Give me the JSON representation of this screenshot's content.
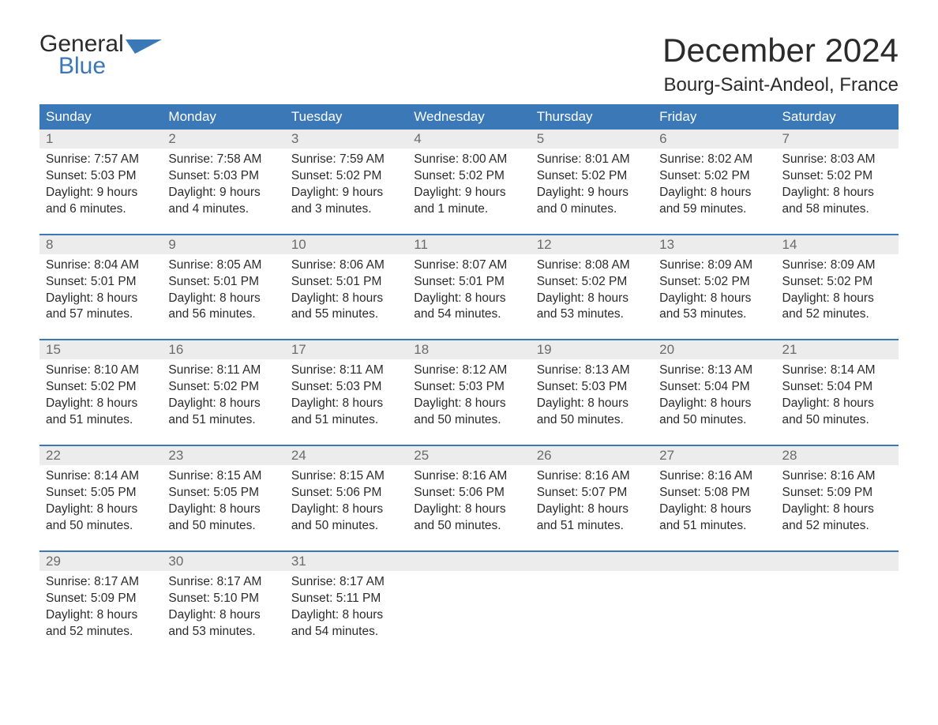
{
  "brand": {
    "name_part1": "General",
    "name_part2": "Blue",
    "accent_color": "#3b78b8"
  },
  "header": {
    "title": "December 2024",
    "location": "Bourg-Saint-Andeol, France"
  },
  "calendar": {
    "columns": [
      "Sunday",
      "Monday",
      "Tuesday",
      "Wednesday",
      "Thursday",
      "Friday",
      "Saturday"
    ],
    "header_bg": "#3b78b8",
    "header_fg": "#ffffff",
    "row_divider_color": "#3b78b8",
    "daynum_bg": "#ececec",
    "weeks": [
      [
        {
          "n": "1",
          "sunrise": "Sunrise: 7:57 AM",
          "sunset": "Sunset: 5:03 PM",
          "daylight": "Daylight: 9 hours and 6 minutes."
        },
        {
          "n": "2",
          "sunrise": "Sunrise: 7:58 AM",
          "sunset": "Sunset: 5:03 PM",
          "daylight": "Daylight: 9 hours and 4 minutes."
        },
        {
          "n": "3",
          "sunrise": "Sunrise: 7:59 AM",
          "sunset": "Sunset: 5:02 PM",
          "daylight": "Daylight: 9 hours and 3 minutes."
        },
        {
          "n": "4",
          "sunrise": "Sunrise: 8:00 AM",
          "sunset": "Sunset: 5:02 PM",
          "daylight": "Daylight: 9 hours and 1 minute."
        },
        {
          "n": "5",
          "sunrise": "Sunrise: 8:01 AM",
          "sunset": "Sunset: 5:02 PM",
          "daylight": "Daylight: 9 hours and 0 minutes."
        },
        {
          "n": "6",
          "sunrise": "Sunrise: 8:02 AM",
          "sunset": "Sunset: 5:02 PM",
          "daylight": "Daylight: 8 hours and 59 minutes."
        },
        {
          "n": "7",
          "sunrise": "Sunrise: 8:03 AM",
          "sunset": "Sunset: 5:02 PM",
          "daylight": "Daylight: 8 hours and 58 minutes."
        }
      ],
      [
        {
          "n": "8",
          "sunrise": "Sunrise: 8:04 AM",
          "sunset": "Sunset: 5:01 PM",
          "daylight": "Daylight: 8 hours and 57 minutes."
        },
        {
          "n": "9",
          "sunrise": "Sunrise: 8:05 AM",
          "sunset": "Sunset: 5:01 PM",
          "daylight": "Daylight: 8 hours and 56 minutes."
        },
        {
          "n": "10",
          "sunrise": "Sunrise: 8:06 AM",
          "sunset": "Sunset: 5:01 PM",
          "daylight": "Daylight: 8 hours and 55 minutes."
        },
        {
          "n": "11",
          "sunrise": "Sunrise: 8:07 AM",
          "sunset": "Sunset: 5:01 PM",
          "daylight": "Daylight: 8 hours and 54 minutes."
        },
        {
          "n": "12",
          "sunrise": "Sunrise: 8:08 AM",
          "sunset": "Sunset: 5:02 PM",
          "daylight": "Daylight: 8 hours and 53 minutes."
        },
        {
          "n": "13",
          "sunrise": "Sunrise: 8:09 AM",
          "sunset": "Sunset: 5:02 PM",
          "daylight": "Daylight: 8 hours and 53 minutes."
        },
        {
          "n": "14",
          "sunrise": "Sunrise: 8:09 AM",
          "sunset": "Sunset: 5:02 PM",
          "daylight": "Daylight: 8 hours and 52 minutes."
        }
      ],
      [
        {
          "n": "15",
          "sunrise": "Sunrise: 8:10 AM",
          "sunset": "Sunset: 5:02 PM",
          "daylight": "Daylight: 8 hours and 51 minutes."
        },
        {
          "n": "16",
          "sunrise": "Sunrise: 8:11 AM",
          "sunset": "Sunset: 5:02 PM",
          "daylight": "Daylight: 8 hours and 51 minutes."
        },
        {
          "n": "17",
          "sunrise": "Sunrise: 8:11 AM",
          "sunset": "Sunset: 5:03 PM",
          "daylight": "Daylight: 8 hours and 51 minutes."
        },
        {
          "n": "18",
          "sunrise": "Sunrise: 8:12 AM",
          "sunset": "Sunset: 5:03 PM",
          "daylight": "Daylight: 8 hours and 50 minutes."
        },
        {
          "n": "19",
          "sunrise": "Sunrise: 8:13 AM",
          "sunset": "Sunset: 5:03 PM",
          "daylight": "Daylight: 8 hours and 50 minutes."
        },
        {
          "n": "20",
          "sunrise": "Sunrise: 8:13 AM",
          "sunset": "Sunset: 5:04 PM",
          "daylight": "Daylight: 8 hours and 50 minutes."
        },
        {
          "n": "21",
          "sunrise": "Sunrise: 8:14 AM",
          "sunset": "Sunset: 5:04 PM",
          "daylight": "Daylight: 8 hours and 50 minutes."
        }
      ],
      [
        {
          "n": "22",
          "sunrise": "Sunrise: 8:14 AM",
          "sunset": "Sunset: 5:05 PM",
          "daylight": "Daylight: 8 hours and 50 minutes."
        },
        {
          "n": "23",
          "sunrise": "Sunrise: 8:15 AM",
          "sunset": "Sunset: 5:05 PM",
          "daylight": "Daylight: 8 hours and 50 minutes."
        },
        {
          "n": "24",
          "sunrise": "Sunrise: 8:15 AM",
          "sunset": "Sunset: 5:06 PM",
          "daylight": "Daylight: 8 hours and 50 minutes."
        },
        {
          "n": "25",
          "sunrise": "Sunrise: 8:16 AM",
          "sunset": "Sunset: 5:06 PM",
          "daylight": "Daylight: 8 hours and 50 minutes."
        },
        {
          "n": "26",
          "sunrise": "Sunrise: 8:16 AM",
          "sunset": "Sunset: 5:07 PM",
          "daylight": "Daylight: 8 hours and 51 minutes."
        },
        {
          "n": "27",
          "sunrise": "Sunrise: 8:16 AM",
          "sunset": "Sunset: 5:08 PM",
          "daylight": "Daylight: 8 hours and 51 minutes."
        },
        {
          "n": "28",
          "sunrise": "Sunrise: 8:16 AM",
          "sunset": "Sunset: 5:09 PM",
          "daylight": "Daylight: 8 hours and 52 minutes."
        }
      ],
      [
        {
          "n": "29",
          "sunrise": "Sunrise: 8:17 AM",
          "sunset": "Sunset: 5:09 PM",
          "daylight": "Daylight: 8 hours and 52 minutes."
        },
        {
          "n": "30",
          "sunrise": "Sunrise: 8:17 AM",
          "sunset": "Sunset: 5:10 PM",
          "daylight": "Daylight: 8 hours and 53 minutes."
        },
        {
          "n": "31",
          "sunrise": "Sunrise: 8:17 AM",
          "sunset": "Sunset: 5:11 PM",
          "daylight": "Daylight: 8 hours and 54 minutes."
        },
        {
          "empty": true
        },
        {
          "empty": true
        },
        {
          "empty": true
        },
        {
          "empty": true
        }
      ]
    ]
  }
}
